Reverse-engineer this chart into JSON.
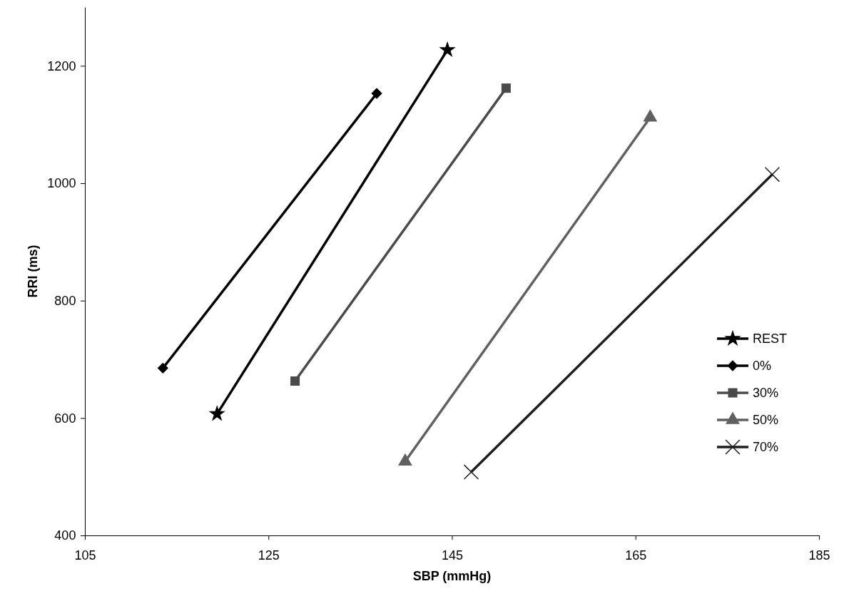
{
  "chart_data": {
    "type": "line",
    "xlabel": "SBP (mmHg)",
    "ylabel": "RRI (ms)",
    "xlim": [
      105,
      185
    ],
    "xticks": [
      105,
      125,
      145,
      165,
      185
    ],
    "ylim": [
      400,
      1300
    ],
    "yticks": [
      400,
      600,
      800,
      1000,
      1200
    ],
    "grid": false,
    "legend": "right",
    "line_style": "solid",
    "series": [
      {
        "name": "REST",
        "color": "#000000",
        "marker": "star",
        "x": [
          119.4,
          144.5
        ],
        "values": [
          607,
          1227
        ]
      },
      {
        "name": "0%",
        "color": "#000000",
        "marker": "diamond",
        "x": [
          113.5,
          136.8
        ],
        "values": [
          685,
          1153
        ]
      },
      {
        "name": "30%",
        "color": "#4a4a4a",
        "marker": "square",
        "x": [
          127.9,
          150.9
        ],
        "values": [
          663,
          1162
        ]
      },
      {
        "name": "50%",
        "color": "#606060",
        "marker": "triangle",
        "x": [
          139.9,
          166.6
        ],
        "values": [
          526,
          1112
        ]
      },
      {
        "name": "70%",
        "color": "#1e1e1e",
        "marker": "cross",
        "x": [
          147.1,
          179.9
        ],
        "values": [
          508,
          1015
        ]
      }
    ]
  }
}
